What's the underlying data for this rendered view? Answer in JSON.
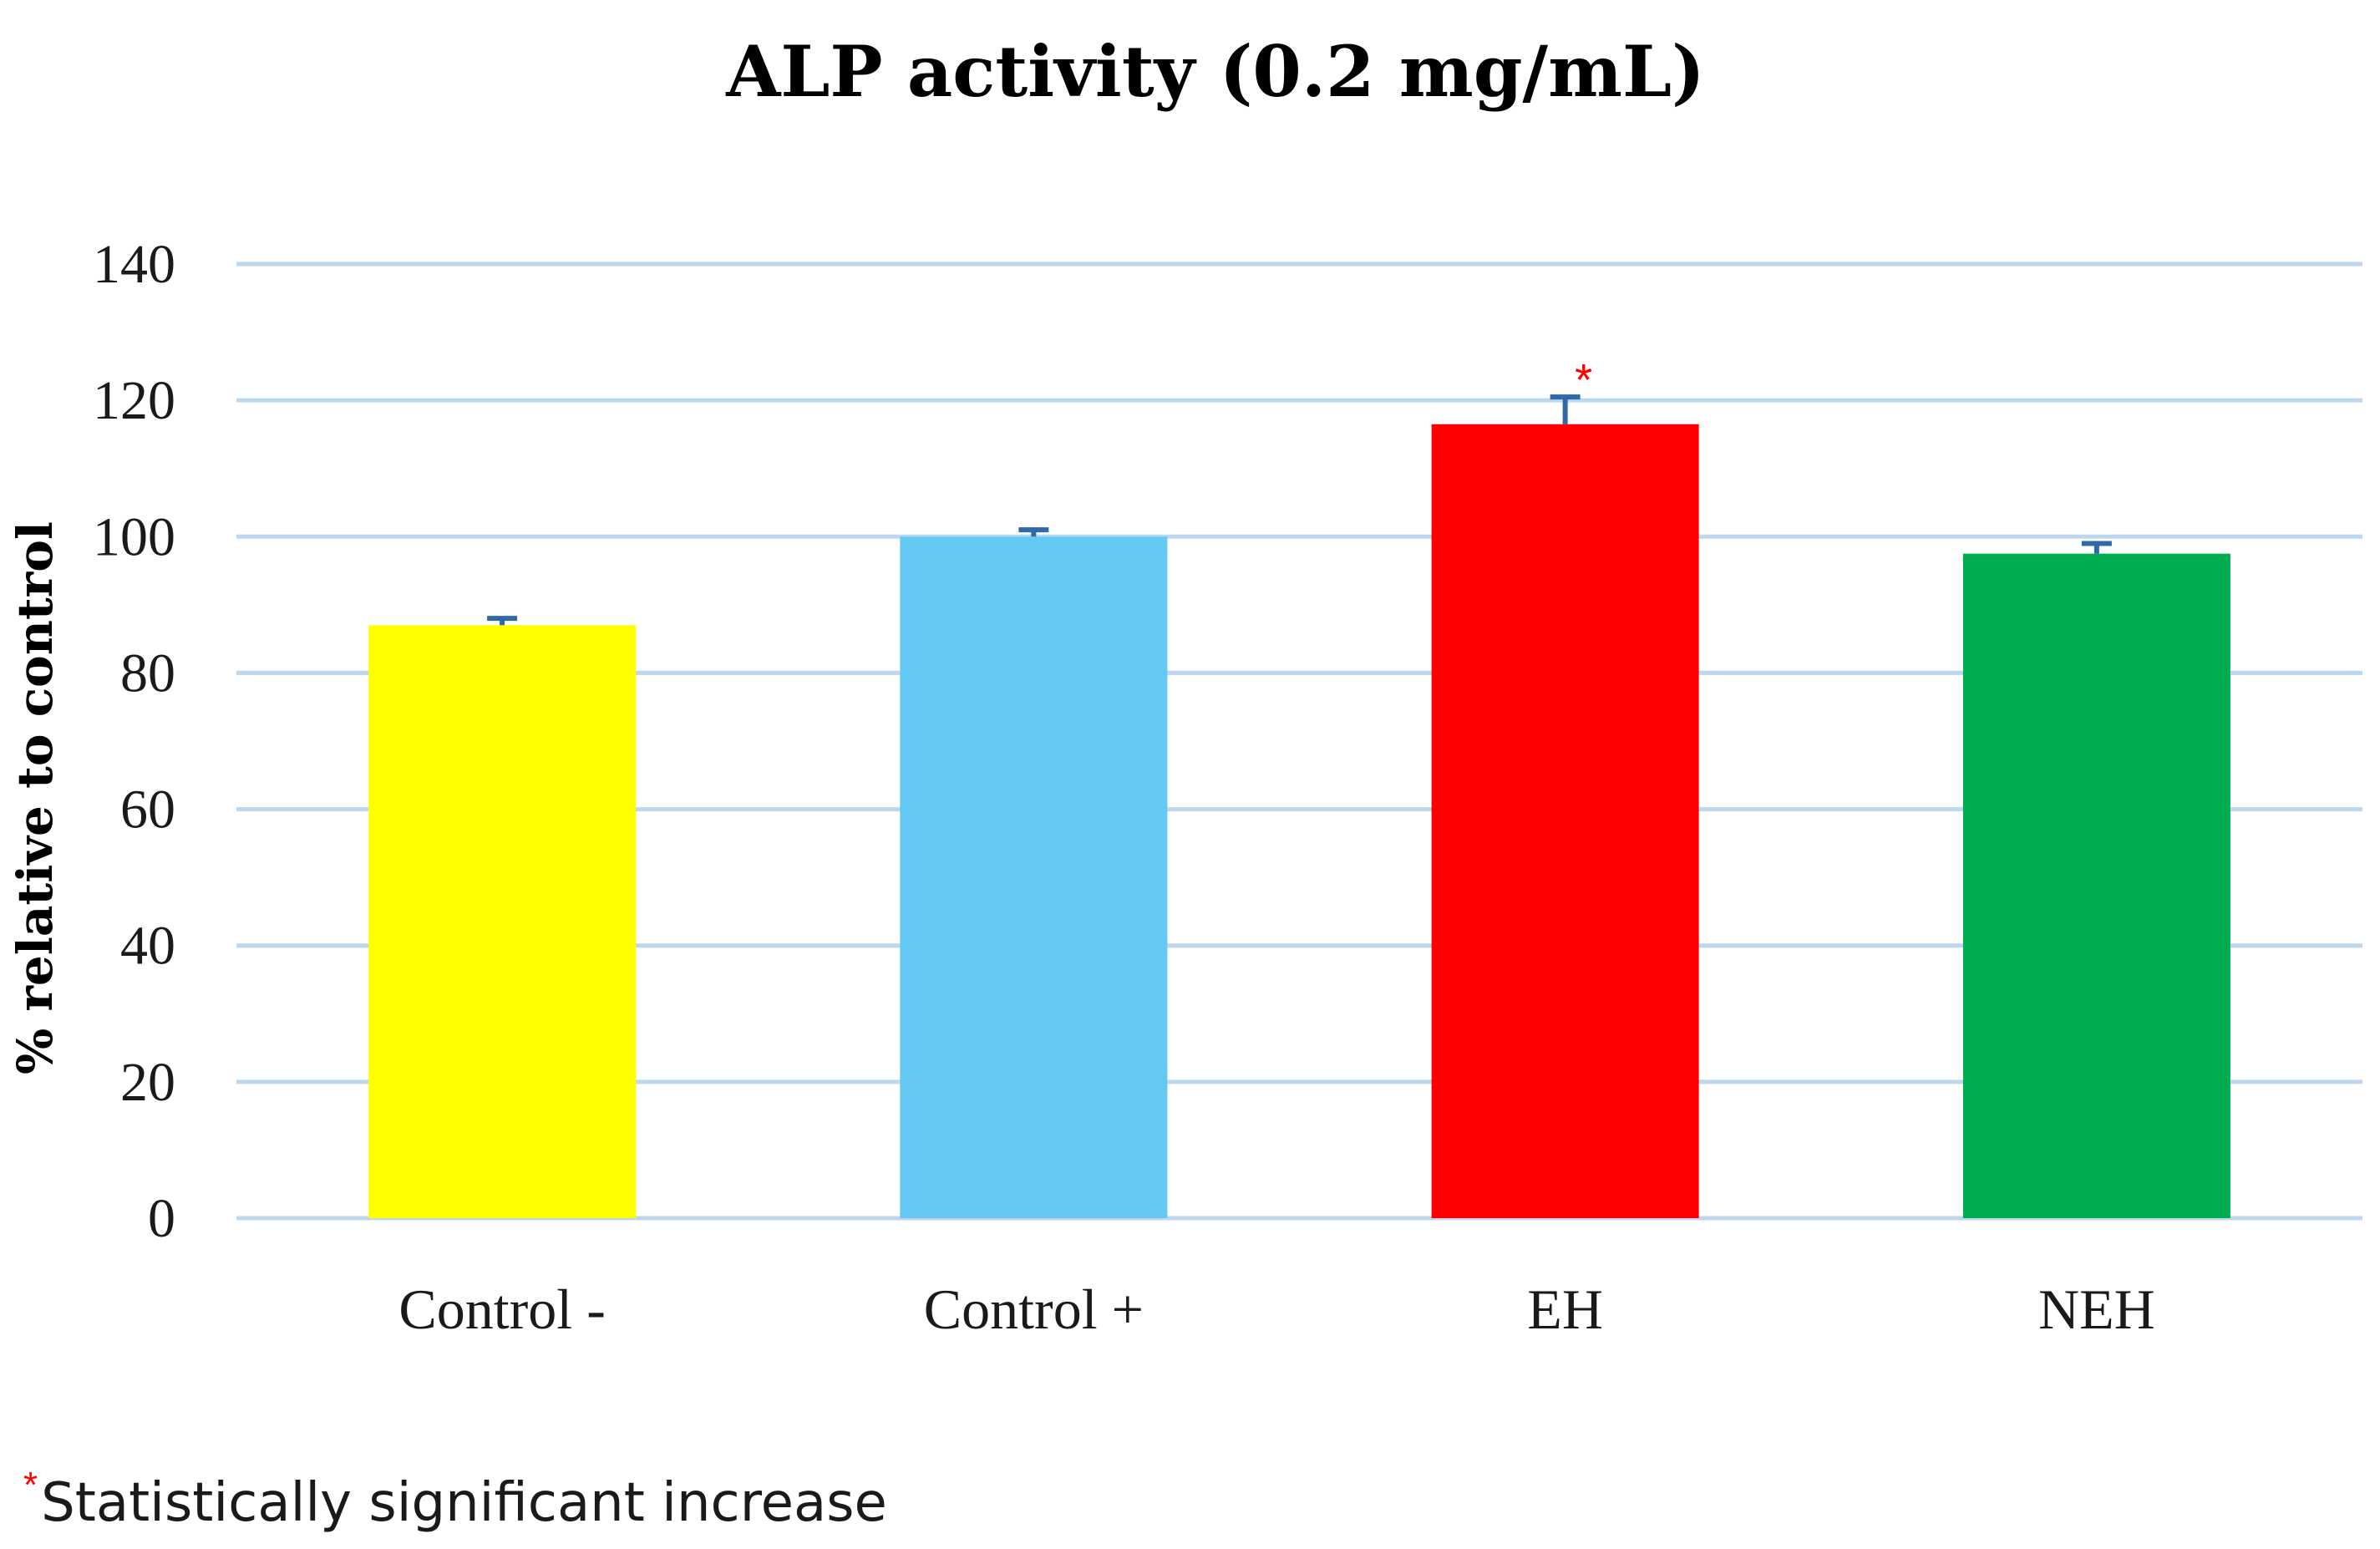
{
  "chart_data": {
    "type": "bar",
    "title": "ALP activity (0.2 mg/mL)",
    "xlabel": "",
    "ylabel": "% relative to control",
    "ylim": [
      0,
      140
    ],
    "yticks": [
      0,
      20,
      40,
      60,
      80,
      100,
      120,
      140
    ],
    "ytick_labels": [
      "0",
      "20",
      "40",
      "60",
      "80",
      "100",
      "120",
      "140"
    ],
    "grid": true,
    "categories": [
      "Control -",
      "Control +",
      "EH",
      "NEH"
    ],
    "values": [
      87,
      100,
      116.5,
      97.5
    ],
    "errors": [
      1,
      1,
      4,
      1.5
    ],
    "bar_colors": [
      "#ffff00",
      "#63c9f2",
      "#ff0000",
      "#00ac50"
    ],
    "grid_color": "#bdd7ee",
    "error_color": "#2e6aa8",
    "significance_marker": "*",
    "significance_color": "#ff0000",
    "significant_categories": [
      "EH"
    ],
    "footnote": {
      "marker": "*",
      "text": "Statistically significant increase"
    }
  }
}
